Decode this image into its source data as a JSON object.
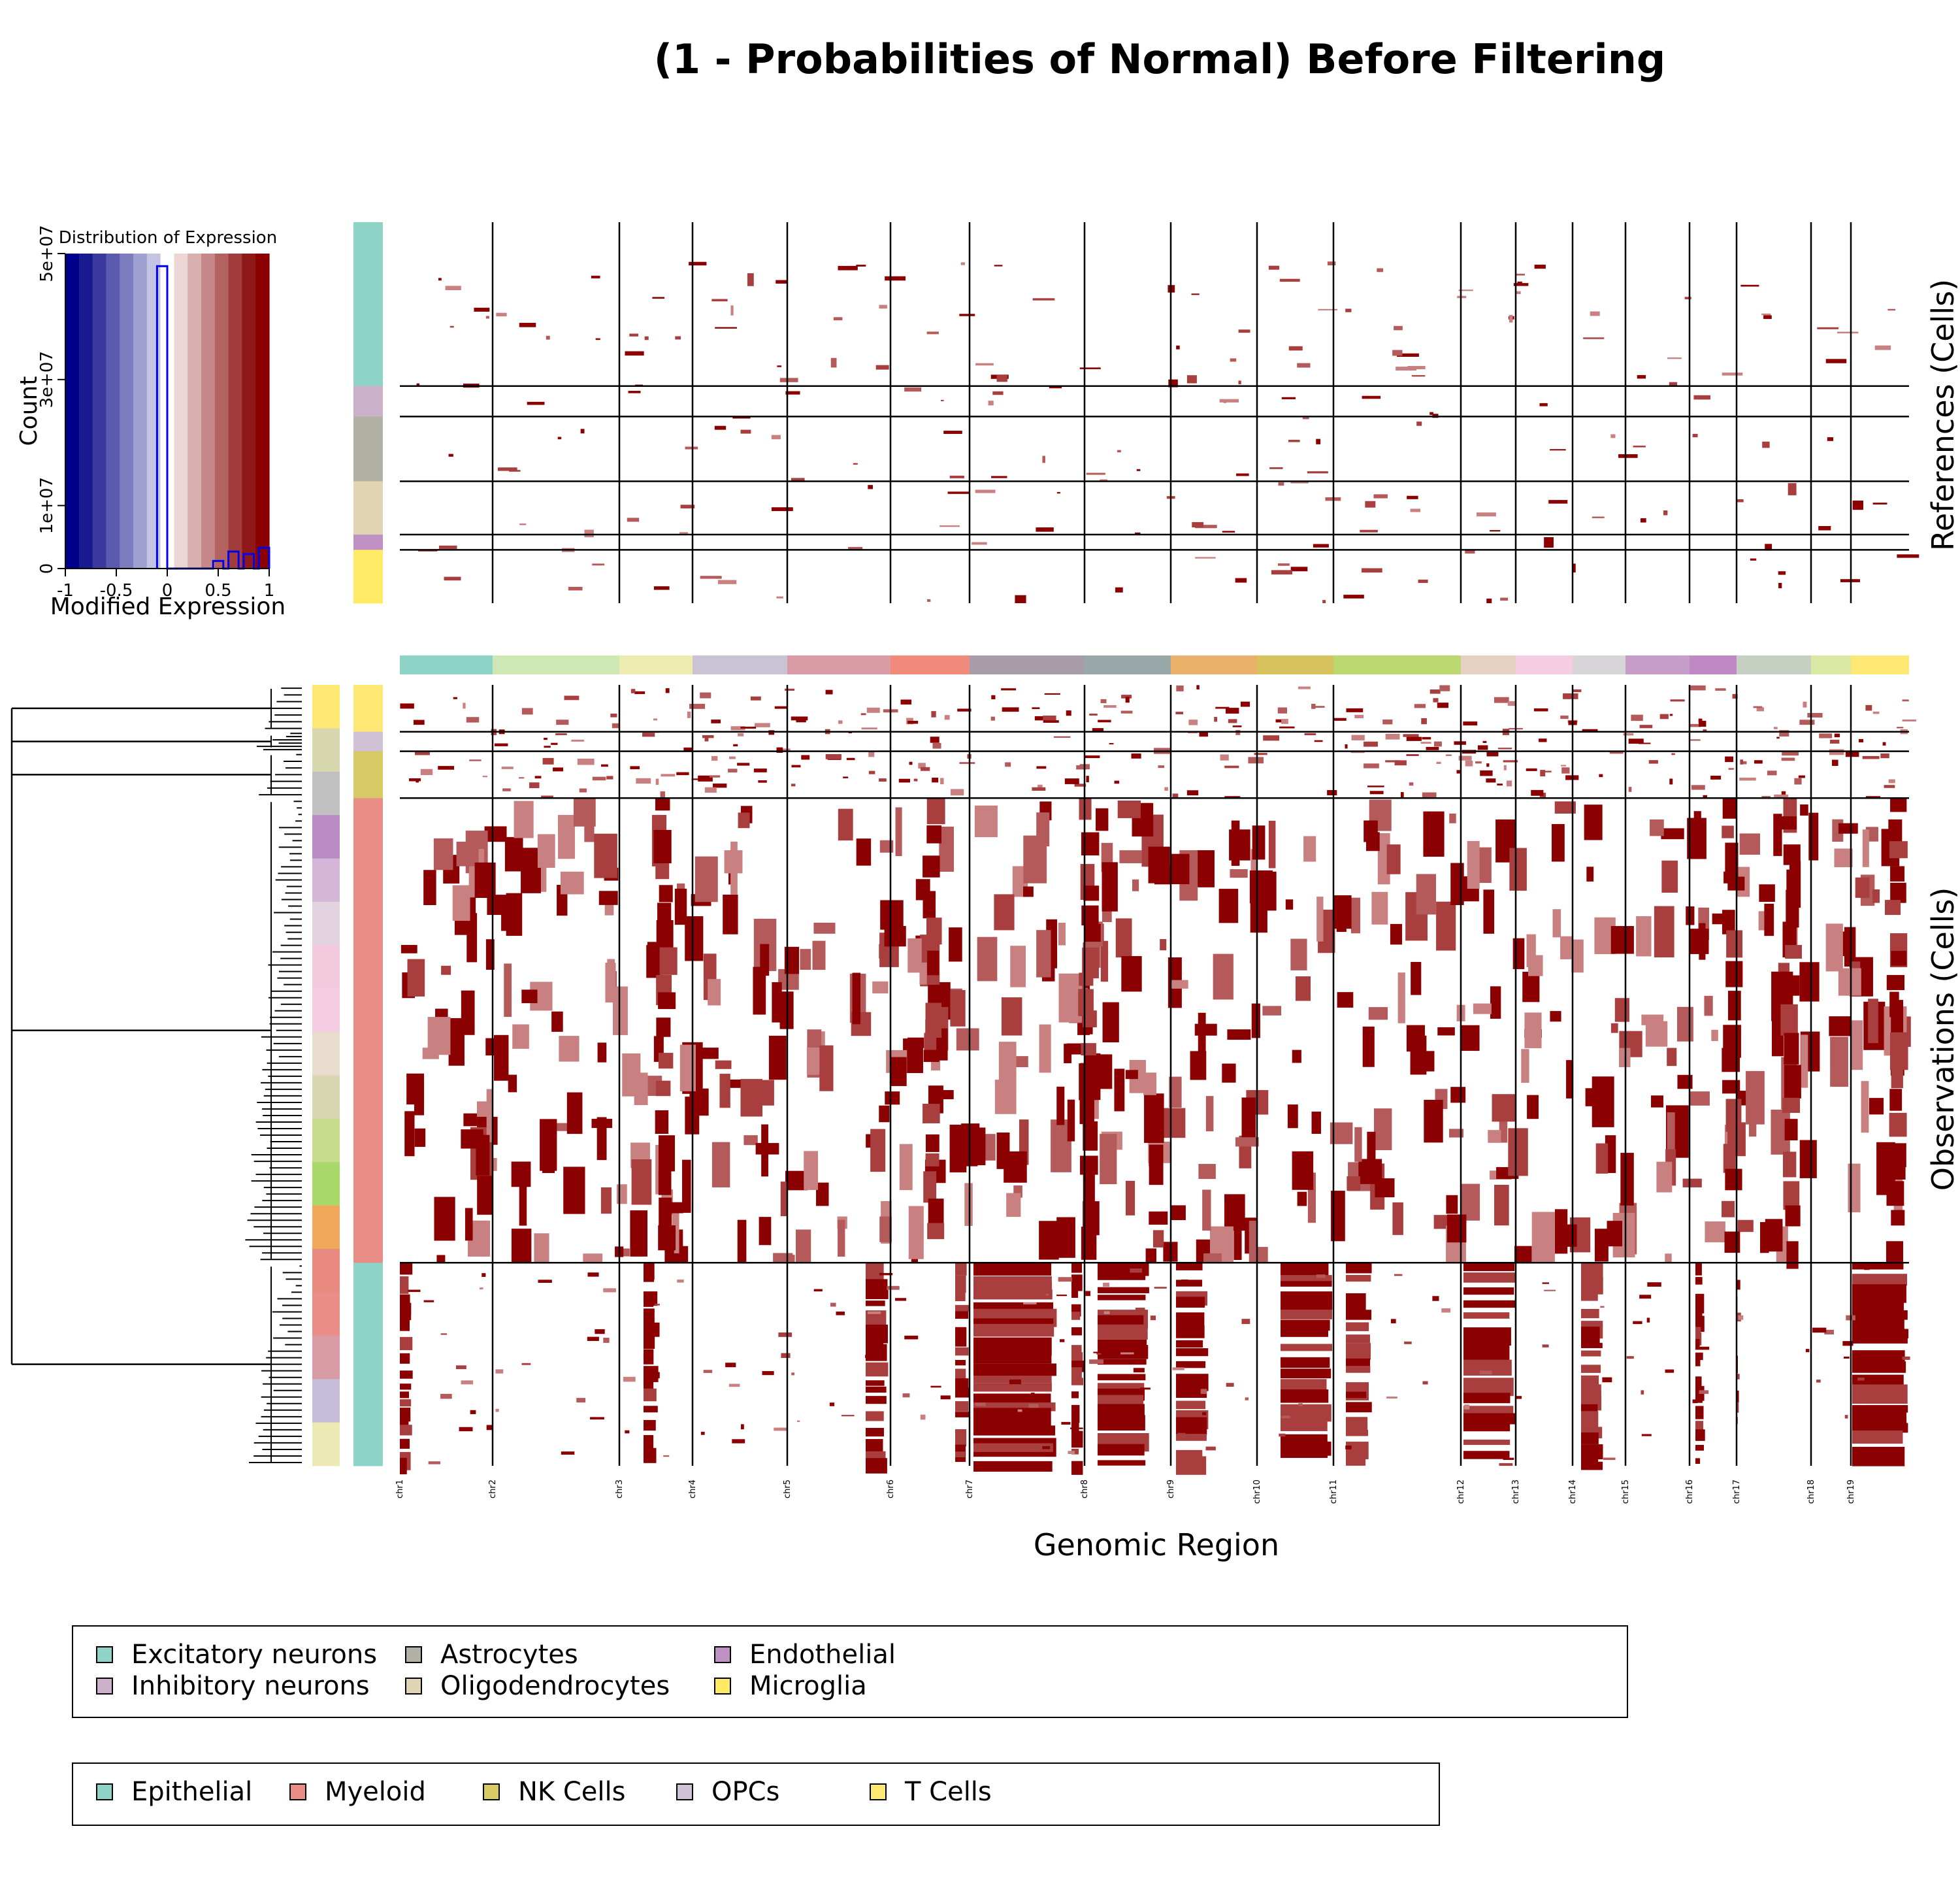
{
  "chart_data": {
    "type": "heatmap",
    "title": "(1 - Probabilities of Normal) Before Filtering",
    "xlabel": "Genomic Region",
    "references_label": "References (Cells)",
    "observations_label": "Observations (Cells)",
    "chromosomes": [
      "chr1",
      "chr2",
      "chr3",
      "chr4",
      "chr5",
      "chr6",
      "chr7",
      "chr8",
      "chr9",
      "chr10",
      "chr11",
      "chr12",
      "chr13",
      "chr14",
      "chr15",
      "chr16",
      "chr17",
      "chr18",
      "chr19"
    ],
    "color_key": {
      "title": "Distribution of Expression",
      "xlabel": "Modified Expression",
      "ylabel": "Count",
      "x_ticks": [
        "-1",
        "-0.5",
        "0",
        "0.5",
        "1"
      ],
      "y_ticks": [
        "0",
        "1e+07",
        "3e+07",
        "5e+07"
      ],
      "x_range": [
        -1,
        1
      ],
      "y_range": [
        0,
        50000000
      ],
      "histogram": [
        {
          "x": -0.05,
          "count": 48000000
        },
        {
          "x": 0.05,
          "count": 0
        },
        {
          "x": 0.5,
          "count": 1200000
        },
        {
          "x": 0.65,
          "count": 2700000
        },
        {
          "x": 0.8,
          "count": 2300000
        },
        {
          "x": 0.95,
          "count": 3300000
        }
      ],
      "colors": [
        "#00008b",
        "#1a1a90",
        "#3a3a9e",
        "#5a5aae",
        "#7c7cbf",
        "#a0a0d0",
        "#c4c4e2",
        "#ffffff",
        "#ecd5d5",
        "#d9aeae",
        "#c68888",
        "#b36262",
        "#a03c3c",
        "#8f1818",
        "#8b0000"
      ]
    },
    "reference_groups": [
      {
        "name": "Excitatory neurons",
        "fraction": 0.43,
        "color": "#8dd3c7"
      },
      {
        "name": "Inhibitory neurons",
        "fraction": 0.08,
        "color": "#ccafc8"
      },
      {
        "name": "Astrocytes",
        "fraction": 0.17,
        "color": "#b1b2a3"
      },
      {
        "name": "Oligodendrocytes",
        "fraction": 0.14,
        "color": "#e0d4b4"
      },
      {
        "name": "Endothelial",
        "fraction": 0.04,
        "color": "#be90c3"
      },
      {
        "name": "Microglia",
        "fraction": 0.14,
        "color": "#ffea66"
      }
    ],
    "observation_groups": [
      {
        "name": "T Cells",
        "fraction": 0.06,
        "color": "#fde874"
      },
      {
        "name": "OPCs",
        "fraction": 0.025,
        "color": "#cfc1d6"
      },
      {
        "name": "NK Cells",
        "fraction": 0.06,
        "color": "#d7c964"
      },
      {
        "name": "Myeloid",
        "fraction": 0.595,
        "color": "#ea8d87"
      },
      {
        "name": "Epithelial",
        "fraction": 0.26,
        "color": "#8dd3c7"
      }
    ],
    "legend_references": [
      "Excitatory neurons",
      "Inhibitory neurons",
      "Astrocytes",
      "Oligodendrocytes",
      "Endothelial",
      "Microglia"
    ],
    "legend_observations": [
      "Epithelial",
      "Myeloid",
      "NK Cells",
      "OPCs",
      "T Cells"
    ],
    "heat_color_high": "#8b0000",
    "heat_color_mid": "#b45a5a",
    "grid": false
  }
}
